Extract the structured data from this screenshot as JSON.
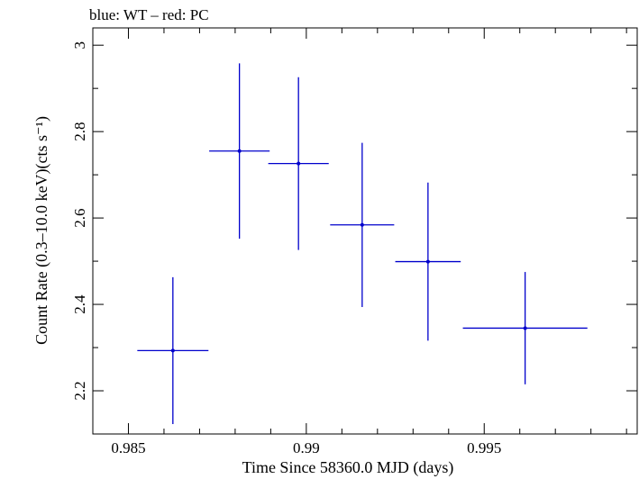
{
  "chart_data": {
    "type": "scatter",
    "title": "blue: WT – red: PC",
    "xlabel": "Time Since 58360.0 MJD (days)",
    "ylabel": "Count Rate (0.3–10.0 keV)(cts s⁻¹)",
    "xlim": [
      0.984,
      0.9993
    ],
    "ylim": [
      2.1,
      3.04
    ],
    "x_ticks": [
      0.985,
      0.99,
      0.995
    ],
    "x_tick_labels": [
      "0.985",
      "0.99",
      "0.995"
    ],
    "y_ticks": [
      2.2,
      2.4,
      2.6,
      2.8,
      3.0
    ],
    "y_tick_labels": [
      "2.2",
      "2.4",
      "2.6",
      "2.8",
      "3"
    ],
    "series": [
      {
        "name": "WT",
        "color": "#0000cc",
        "points": [
          {
            "x": 0.98625,
            "xerr": 0.001,
            "y": 2.293,
            "yerr": 0.17
          },
          {
            "x": 0.98812,
            "xerr": 0.00085,
            "y": 2.755,
            "yerr": 0.203
          },
          {
            "x": 0.98978,
            "xerr": 0.00085,
            "y": 2.726,
            "yerr": 0.2
          },
          {
            "x": 0.99157,
            "xerr": 0.0009,
            "y": 2.584,
            "yerr": 0.19
          },
          {
            "x": 0.99342,
            "xerr": 0.00092,
            "y": 2.499,
            "yerr": 0.183
          },
          {
            "x": 0.99615,
            "xerr": 0.00175,
            "y": 2.345,
            "yerr": 0.13
          }
        ]
      }
    ]
  }
}
